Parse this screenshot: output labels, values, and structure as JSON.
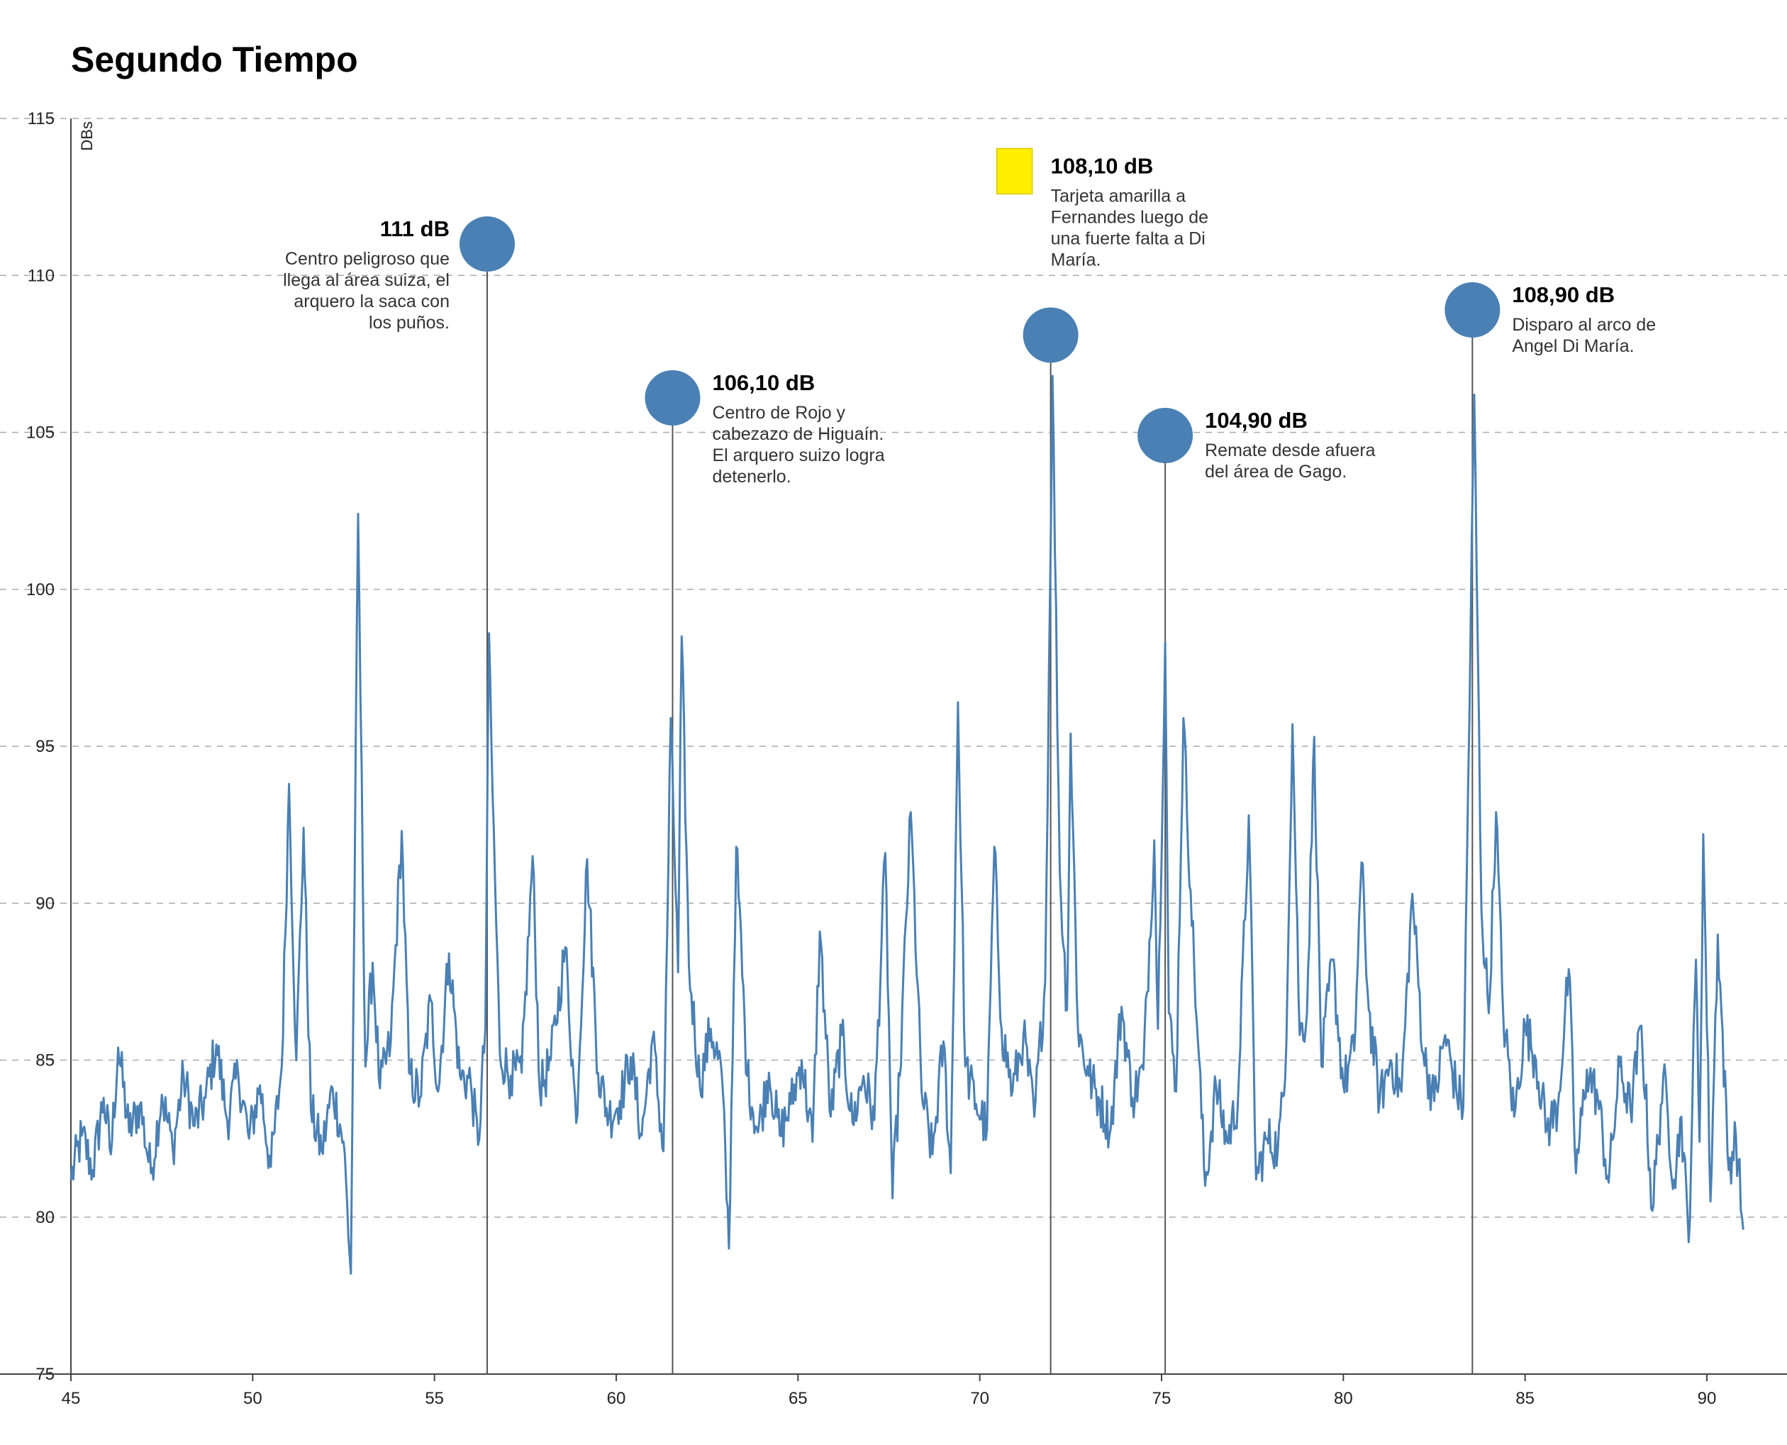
{
  "chart_data": {
    "type": "line",
    "title": "Segundo Tiempo",
    "xlabel": "",
    "ylabel": "DBs",
    "xlim": [
      45,
      91
    ],
    "ylim": [
      75,
      115
    ],
    "x_ticks": [
      45,
      50,
      55,
      60,
      65,
      70,
      75,
      80,
      85,
      90
    ],
    "y_ticks": [
      75,
      80,
      85,
      90,
      95,
      100,
      105,
      110,
      115
    ],
    "grid": true,
    "colors": {
      "line": "#4a80b4",
      "marker": "#4a80b4",
      "card": "#ffee00",
      "leader": "#555555"
    },
    "series": [
      {
        "anchors": [
          [
            45.0,
            81.2
          ],
          [
            45.3,
            82.6
          ],
          [
            45.6,
            81.5
          ],
          [
            45.9,
            83.8
          ],
          [
            46.1,
            82.0
          ],
          [
            46.3,
            85.4
          ],
          [
            46.6,
            82.7
          ],
          [
            46.9,
            83.6
          ],
          [
            47.2,
            81.4
          ],
          [
            47.5,
            83.9
          ],
          [
            47.8,
            82.2
          ],
          [
            48.1,
            84.5
          ],
          [
            48.4,
            82.9
          ],
          [
            48.7,
            83.8
          ],
          [
            49.0,
            85.5
          ],
          [
            49.3,
            83.1
          ],
          [
            49.6,
            84.6
          ],
          [
            49.9,
            82.5
          ],
          [
            50.2,
            84.2
          ],
          [
            50.5,
            81.6
          ],
          [
            50.8,
            84.8
          ],
          [
            51.0,
            93.8
          ],
          [
            51.2,
            85.0
          ],
          [
            51.4,
            92.4
          ],
          [
            51.6,
            83.4
          ],
          [
            51.9,
            82.1
          ],
          [
            52.2,
            84.1
          ],
          [
            52.5,
            82.4
          ],
          [
            52.7,
            78.2
          ],
          [
            52.9,
            102.4
          ],
          [
            53.1,
            84.8
          ],
          [
            53.3,
            88.1
          ],
          [
            53.5,
            84.1
          ],
          [
            53.8,
            85.6
          ],
          [
            54.1,
            92.3
          ],
          [
            54.3,
            84.6
          ],
          [
            54.6,
            83.8
          ],
          [
            54.9,
            86.9
          ],
          [
            55.1,
            84.0
          ],
          [
            55.4,
            88.4
          ],
          [
            55.7,
            84.5
          ],
          [
            56.0,
            84.3
          ],
          [
            56.2,
            82.3
          ],
          [
            56.4,
            86.0
          ],
          [
            56.5,
            98.6
          ],
          [
            56.6,
            93.4
          ],
          [
            56.8,
            85.2
          ],
          [
            57.1,
            84.5
          ],
          [
            57.4,
            84.6
          ],
          [
            57.7,
            91.5
          ],
          [
            57.9,
            84.0
          ],
          [
            58.2,
            85.0
          ],
          [
            58.6,
            88.6
          ],
          [
            58.9,
            83.0
          ],
          [
            59.2,
            91.4
          ],
          [
            59.5,
            84.6
          ],
          [
            59.8,
            83.2
          ],
          [
            60.1,
            83.7
          ],
          [
            60.4,
            85.1
          ],
          [
            60.7,
            82.6
          ],
          [
            61.0,
            85.7
          ],
          [
            61.3,
            82.1
          ],
          [
            61.5,
            95.9
          ],
          [
            61.7,
            87.8
          ],
          [
            61.8,
            98.5
          ],
          [
            62.0,
            88.0
          ],
          [
            62.3,
            84.2
          ],
          [
            62.6,
            86.0
          ],
          [
            62.9,
            84.6
          ],
          [
            63.1,
            79.0
          ],
          [
            63.3,
            91.8
          ],
          [
            63.6,
            84.5
          ],
          [
            63.9,
            82.7
          ],
          [
            64.2,
            84.6
          ],
          [
            64.5,
            82.6
          ],
          [
            64.8,
            83.6
          ],
          [
            65.1,
            85.0
          ],
          [
            65.4,
            82.4
          ],
          [
            65.6,
            89.1
          ],
          [
            65.9,
            83.2
          ],
          [
            66.2,
            85.8
          ],
          [
            66.5,
            83.0
          ],
          [
            66.8,
            84.5
          ],
          [
            67.1,
            83.1
          ],
          [
            67.4,
            91.6
          ],
          [
            67.6,
            80.6
          ],
          [
            67.8,
            84.5
          ],
          [
            68.1,
            92.9
          ],
          [
            68.4,
            84.0
          ],
          [
            68.7,
            82.0
          ],
          [
            69.0,
            85.6
          ],
          [
            69.2,
            81.4
          ],
          [
            69.4,
            96.4
          ],
          [
            69.6,
            84.8
          ],
          [
            69.9,
            83.6
          ],
          [
            70.2,
            82.8
          ],
          [
            70.4,
            91.8
          ],
          [
            70.6,
            86.0
          ],
          [
            70.9,
            84.0
          ],
          [
            71.2,
            85.8
          ],
          [
            71.5,
            83.2
          ],
          [
            71.8,
            87.5
          ],
          [
            72.0,
            106.8
          ],
          [
            72.2,
            91.0
          ],
          [
            72.4,
            86.6
          ],
          [
            72.5,
            95.4
          ],
          [
            72.7,
            86.0
          ],
          [
            73.0,
            84.5
          ],
          [
            73.3,
            83.7
          ],
          [
            73.6,
            82.8
          ],
          [
            73.9,
            86.7
          ],
          [
            74.2,
            83.8
          ],
          [
            74.5,
            84.7
          ],
          [
            74.8,
            92.0
          ],
          [
            74.9,
            86.0
          ],
          [
            75.1,
            98.3
          ],
          [
            75.2,
            86.5
          ],
          [
            75.4,
            84.0
          ],
          [
            75.6,
            95.9
          ],
          [
            75.8,
            90.4
          ],
          [
            76.0,
            85.6
          ],
          [
            76.2,
            81.0
          ],
          [
            76.5,
            84.2
          ],
          [
            76.8,
            82.4
          ],
          [
            77.1,
            83.7
          ],
          [
            77.4,
            92.8
          ],
          [
            77.6,
            81.2
          ],
          [
            77.9,
            82.5
          ],
          [
            78.2,
            82.2
          ],
          [
            78.4,
            84.4
          ],
          [
            78.6,
            95.7
          ],
          [
            78.8,
            85.8
          ],
          [
            79.0,
            86.5
          ],
          [
            79.2,
            95.3
          ],
          [
            79.4,
            84.8
          ],
          [
            79.7,
            88.2
          ],
          [
            80.0,
            84.2
          ],
          [
            80.3,
            85.3
          ],
          [
            80.5,
            91.3
          ],
          [
            80.7,
            86.6
          ],
          [
            81.0,
            83.7
          ],
          [
            81.3,
            85.0
          ],
          [
            81.6,
            84.0
          ],
          [
            81.9,
            90.3
          ],
          [
            82.2,
            85.2
          ],
          [
            82.5,
            83.7
          ],
          [
            82.8,
            85.8
          ],
          [
            83.1,
            84.1
          ],
          [
            83.3,
            83.5
          ],
          [
            83.6,
            106.2
          ],
          [
            83.8,
            89.8
          ],
          [
            84.0,
            86.5
          ],
          [
            84.2,
            92.9
          ],
          [
            84.4,
            86.4
          ],
          [
            84.7,
            83.2
          ],
          [
            85.0,
            86.1
          ],
          [
            85.3,
            85.0
          ],
          [
            85.6,
            82.8
          ],
          [
            85.9,
            83.5
          ],
          [
            86.2,
            87.9
          ],
          [
            86.4,
            81.4
          ],
          [
            86.7,
            84.7
          ],
          [
            87.0,
            83.8
          ],
          [
            87.3,
            81.1
          ],
          [
            87.6,
            84.8
          ],
          [
            87.9,
            83.4
          ],
          [
            88.2,
            86.1
          ],
          [
            88.5,
            80.2
          ],
          [
            88.8,
            84.5
          ],
          [
            89.1,
            81.2
          ],
          [
            89.3,
            83.2
          ],
          [
            89.5,
            79.2
          ],
          [
            89.7,
            88.2
          ],
          [
            89.8,
            82.4
          ],
          [
            89.9,
            92.2
          ],
          [
            90.1,
            80.5
          ],
          [
            90.3,
            89.0
          ],
          [
            90.6,
            81.5
          ],
          [
            90.8,
            82.6
          ],
          [
            91.0,
            79.6
          ]
        ]
      }
    ],
    "annotations": [
      {
        "x": 56.45,
        "y": 111.0,
        "value_label": "111 dB",
        "text": [
          "Centro peligroso que",
          "llega al área suiza, el",
          "arquero la saca con",
          "los puños."
        ],
        "side": "left"
      },
      {
        "x": 61.55,
        "y": 106.1,
        "value_label": "106,10 dB",
        "text": [
          "Centro de Rojo y",
          "cabezazo de Higuaín.",
          "El arquero suizo logra",
          "detenerlo."
        ],
        "side": "right"
      },
      {
        "x": 71.95,
        "y": 108.1,
        "value_label": "108,10 dB",
        "text": [
          "Tarjeta amarilla a",
          "Fernandes luego de",
          "una fuerte falta a Di",
          "María."
        ],
        "side": "right",
        "label_raised": true,
        "card": "yellow"
      },
      {
        "x": 75.1,
        "y": 104.9,
        "value_label": "104,90 dB",
        "text": [
          "Remate desde afuera",
          "del área de Gago."
        ],
        "side": "right"
      },
      {
        "x": 83.55,
        "y": 108.9,
        "value_label": "108,90 dB",
        "text": [
          "Disparo al arco de",
          "Angel Di María."
        ],
        "side": "right"
      }
    ]
  }
}
